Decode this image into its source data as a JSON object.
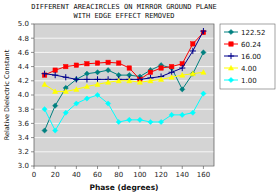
{
  "chart_data": {
    "type": "line",
    "title": "DIFFERENT AREACIRCLES ON MIRROR GROUND PLANE\nWITH EDGE EFFECT REMOVED",
    "x_label": "Phase (degrees)",
    "y_label": "Relative Dielectric Constant",
    "xlim": [
      0,
      170
    ],
    "ylim": [
      3.0,
      5.0
    ],
    "xticks": [
      0,
      20,
      40,
      60,
      80,
      100,
      120,
      140,
      160
    ],
    "yticks": [
      {
        "value": 3.0,
        "label": "3.0"
      },
      3.2,
      3.4,
      3.6,
      3.8,
      {
        "value": 4.0,
        "label": "4.0"
      },
      4.2,
      4.4,
      4.6,
      4.8,
      {
        "value": 5.0,
        "label": "5.0"
      }
    ],
    "grid": true,
    "legend": "right",
    "x": [
      10,
      20,
      30,
      40,
      50,
      60,
      70,
      80,
      90,
      100,
      110,
      120,
      130,
      140,
      150,
      160
    ],
    "series": [
      {
        "name": "122.52",
        "color": "#008080",
        "marker": "diamond",
        "values": [
          3.5,
          3.85,
          4.1,
          4.22,
          4.3,
          4.32,
          4.35,
          4.28,
          4.28,
          4.26,
          4.35,
          4.42,
          4.38,
          4.08,
          4.3,
          4.6
        ]
      },
      {
        "name": "60.24",
        "color": "#ff0000",
        "marker": "square",
        "values": [
          4.28,
          4.35,
          4.4,
          4.42,
          4.44,
          4.45,
          4.46,
          4.45,
          4.38,
          4.22,
          4.32,
          4.38,
          4.4,
          4.44,
          4.72,
          4.88
        ]
      },
      {
        "name": "16.00",
        "color": "#00008b",
        "marker": "plus",
        "values": [
          4.3,
          4.28,
          4.25,
          4.22,
          4.22,
          4.22,
          4.22,
          4.22,
          4.22,
          4.22,
          4.24,
          4.26,
          4.32,
          4.38,
          4.62,
          4.9
        ]
      },
      {
        "name": "4.00",
        "color": "#ffff00",
        "marker": "triangle",
        "values": [
          4.15,
          4.05,
          4.05,
          4.08,
          4.12,
          4.15,
          4.18,
          4.2,
          4.2,
          4.18,
          4.2,
          4.22,
          4.25,
          4.28,
          4.3,
          4.32
        ]
      },
      {
        "name": "1.00",
        "color": "#00ffff",
        "marker": "diamond",
        "values": [
          3.8,
          3.5,
          3.75,
          3.88,
          3.95,
          4.0,
          3.88,
          3.62,
          3.65,
          3.65,
          3.62,
          3.62,
          3.72,
          3.72,
          3.75,
          4.02
        ]
      }
    ]
  }
}
